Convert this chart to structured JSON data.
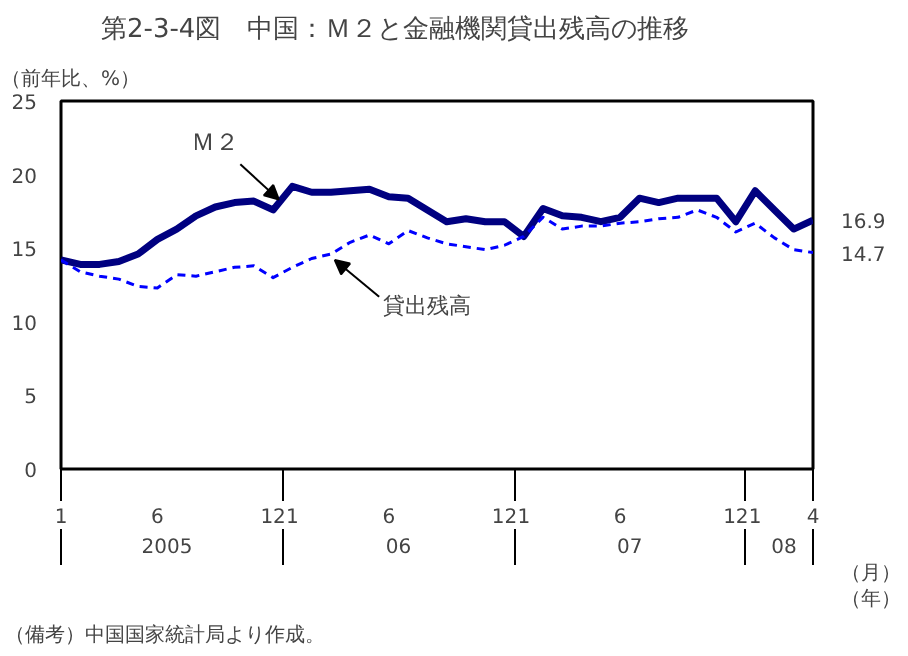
{
  "chart_data": {
    "type": "line",
    "title": "第2-3-4図　中国：Ｍ２と金融機関貸出残高の推移",
    "ylabel": "（前年比、%）",
    "x": [
      "2005-01",
      "2005-02",
      "2005-03",
      "2005-04",
      "2005-05",
      "2005-06",
      "2005-07",
      "2005-08",
      "2005-09",
      "2005-10",
      "2005-11",
      "2005-12",
      "2006-01",
      "2006-02",
      "2006-03",
      "2006-04",
      "2006-05",
      "2006-06",
      "2006-07",
      "2006-08",
      "2006-09",
      "2006-10",
      "2006-11",
      "2006-12",
      "2007-01",
      "2007-02",
      "2007-03",
      "2007-04",
      "2007-05",
      "2007-06",
      "2007-07",
      "2007-08",
      "2007-09",
      "2007-10",
      "2007-11",
      "2007-12",
      "2008-01",
      "2008-02",
      "2008-03",
      "2008-04"
    ],
    "series": [
      {
        "name": "Ｍ２",
        "color": "#000080",
        "line_style": "solid",
        "values": [
          14.2,
          13.9,
          13.9,
          14.1,
          14.6,
          15.6,
          16.3,
          17.2,
          17.8,
          18.1,
          18.2,
          17.6,
          19.2,
          18.8,
          18.8,
          18.9,
          19.0,
          18.5,
          18.4,
          17.6,
          16.8,
          17.0,
          16.8,
          16.8,
          15.8,
          17.7,
          17.2,
          17.1,
          16.8,
          17.1,
          18.4,
          18.1,
          18.4,
          18.4,
          18.4,
          16.8,
          18.9,
          17.6,
          16.3,
          16.9
        ]
      },
      {
        "name": "貸出残高",
        "color": "#0000ff",
        "line_style": "dashed",
        "values": [
          14.2,
          13.4,
          13.1,
          12.9,
          12.4,
          12.3,
          13.2,
          13.1,
          13.4,
          13.7,
          13.8,
          13.0,
          13.7,
          14.3,
          14.6,
          15.4,
          15.9,
          15.3,
          16.2,
          15.7,
          15.3,
          15.1,
          14.9,
          15.2,
          15.8,
          17.1,
          16.3,
          16.5,
          16.5,
          16.7,
          16.8,
          17.0,
          17.1,
          17.6,
          17.1,
          16.1,
          16.7,
          15.7,
          14.9,
          14.7
        ]
      }
    ],
    "xlim": [
      "2005-01",
      "2008-04"
    ],
    "xticks": [
      {
        "value": "2005-01",
        "label": "1"
      },
      {
        "value": "2005-06",
        "label": "6"
      },
      {
        "value": "2005-12",
        "label": "12"
      },
      {
        "value": "2006-01",
        "label": "1"
      },
      {
        "value": "2006-06",
        "label": "6"
      },
      {
        "value": "2006-12",
        "label": "12"
      },
      {
        "value": "2007-01",
        "label": "1"
      },
      {
        "value": "2007-06",
        "label": "6"
      },
      {
        "value": "2007-12",
        "label": "12"
      },
      {
        "value": "2008-01",
        "label": "1"
      },
      {
        "value": "2008-04",
        "label": "4"
      }
    ],
    "ylim": [
      0,
      25
    ],
    "yticks": [
      0,
      5,
      10,
      15,
      20,
      25
    ],
    "grid": false,
    "marker": "none",
    "annotations": [
      {
        "text": "16.9",
        "x": "2008-04",
        "y": 16.9
      },
      {
        "text": "14.7",
        "x": "2008-04",
        "y": 14.7
      },
      "2005",
      "06",
      "07",
      "08",
      "（月）",
      "（年）",
      "（備考）中国国家統計局より作成。"
    ]
  }
}
